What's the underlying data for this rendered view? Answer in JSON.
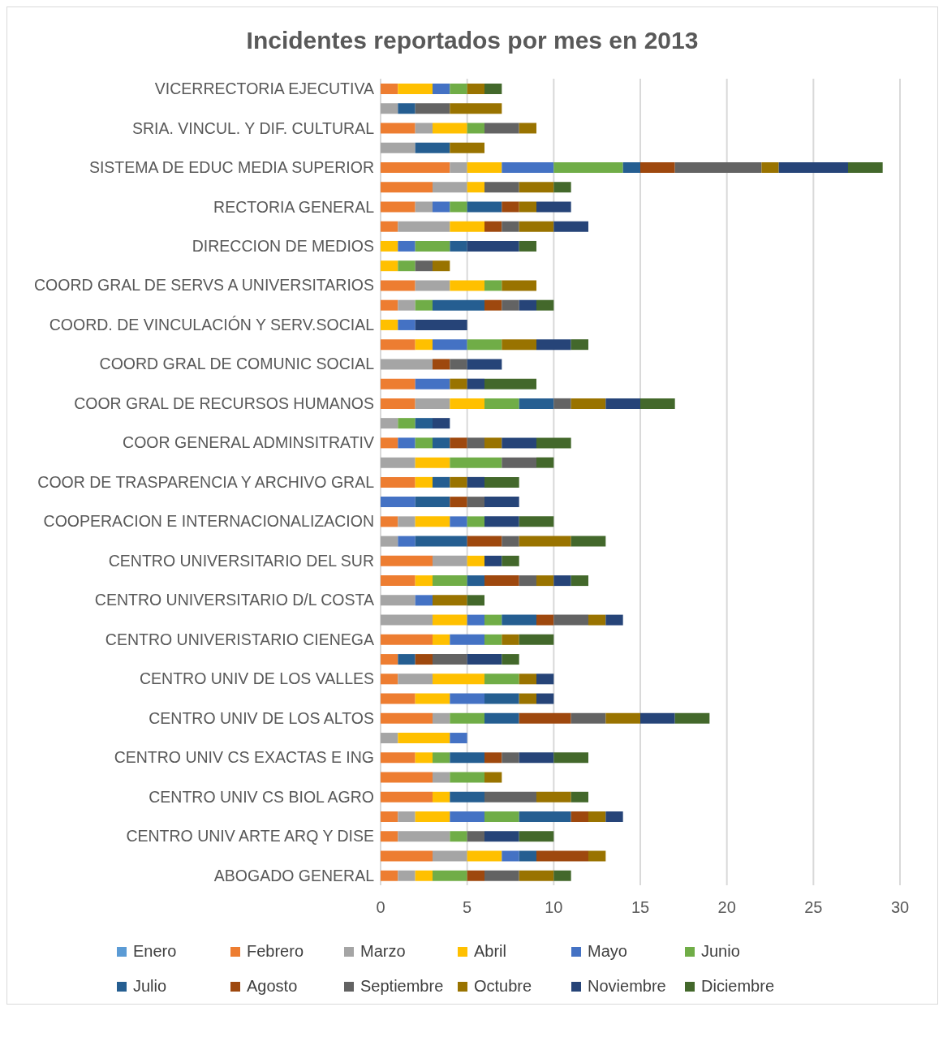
{
  "chart_data": {
    "type": "bar",
    "orientation": "horizontal",
    "stacked": true,
    "title": "Incidentes reportados por mes en 2013",
    "categories": [
      "VICERRECTORIA EJECUTIVA",
      null,
      "SRIA. VINCUL. Y DIF. CULTURAL",
      null,
      "SISTEMA DE EDUC MEDIA SUPERIOR",
      null,
      "RECTORIA GENERAL",
      null,
      "DIRECCION DE MEDIOS",
      null,
      "COORD GRAL DE SERVS A UNIVERSITARIOS",
      null,
      "COORD. DE VINCULACIÓN Y SERV.SOCIAL",
      null,
      "COORD GRAL DE COMUNIC SOCIAL",
      null,
      "COOR GRAL DE RECURSOS HUMANOS",
      null,
      "COOR GENERAL ADMINSITRATIV",
      null,
      "COOR DE TRASPARENCIA Y ARCHIVO GRAL",
      null,
      "COOPERACION E INTERNACIONALIZACION",
      null,
      "CENTRO UNIVERSITARIO DEL SUR",
      null,
      "CENTRO UNIVERSITARIO D/L COSTA",
      null,
      "CENTRO UNIVERISTARIO CIENEGA",
      null,
      "CENTRO UNIV DE LOS VALLES",
      null,
      "CENTRO UNIV DE LOS ALTOS",
      null,
      "CENTRO UNIV CS EXACTAS E ING",
      null,
      "CENTRO UNIV CS BIOL AGRO",
      null,
      "CENTRO UNIV ARTE ARQ Y DISE",
      null,
      "ABOGADO GENERAL"
    ],
    "series": [
      {
        "name": "Enero",
        "color": "#5b9bd5",
        "values": [
          null,
          null,
          null,
          null,
          null,
          null,
          null,
          null,
          null,
          null,
          null,
          null,
          null,
          null,
          null,
          null,
          null,
          null,
          null,
          null,
          null,
          null,
          null,
          null,
          null,
          null,
          null,
          null,
          null,
          null,
          null,
          null,
          null,
          null,
          null,
          null,
          null,
          null,
          null,
          null,
          null
        ]
      },
      {
        "name": "Febrero",
        "color": "#ed7d31",
        "values": [
          1,
          null,
          2,
          null,
          4,
          3,
          2,
          1,
          null,
          null,
          2,
          1,
          null,
          2,
          null,
          2,
          2,
          null,
          1,
          null,
          2,
          null,
          1,
          null,
          3,
          2,
          null,
          null,
          3,
          1,
          1,
          2,
          3,
          null,
          2,
          3,
          3,
          1,
          1,
          3,
          1
        ]
      },
      {
        "name": "Marzo",
        "color": "#a5a5a5",
        "values": [
          null,
          1,
          1,
          2,
          1,
          2,
          1,
          3,
          null,
          null,
          2,
          1,
          null,
          null,
          3,
          null,
          2,
          1,
          null,
          2,
          null,
          null,
          1,
          1,
          2,
          null,
          2,
          3,
          null,
          null,
          2,
          null,
          1,
          1,
          null,
          1,
          null,
          1,
          3,
          2,
          1
        ]
      },
      {
        "name": "Abril",
        "color": "#ffc000",
        "values": [
          2,
          null,
          2,
          null,
          2,
          1,
          null,
          2,
          1,
          1,
          2,
          null,
          1,
          1,
          null,
          null,
          2,
          null,
          null,
          2,
          1,
          null,
          2,
          null,
          1,
          1,
          null,
          2,
          1,
          null,
          3,
          2,
          null,
          3,
          1,
          null,
          1,
          2,
          null,
          2,
          1
        ]
      },
      {
        "name": "Mayo",
        "color": "#4472c4",
        "values": [
          1,
          null,
          null,
          null,
          3,
          null,
          1,
          null,
          1,
          null,
          null,
          null,
          1,
          2,
          null,
          2,
          null,
          null,
          1,
          null,
          null,
          2,
          1,
          1,
          null,
          null,
          1,
          1,
          2,
          null,
          null,
          2,
          null,
          1,
          null,
          null,
          null,
          2,
          null,
          1,
          null
        ]
      },
      {
        "name": "Junio",
        "color": "#70ad47",
        "values": [
          1,
          null,
          1,
          null,
          4,
          null,
          1,
          null,
          2,
          1,
          1,
          1,
          null,
          2,
          null,
          null,
          2,
          1,
          1,
          3,
          null,
          null,
          1,
          null,
          null,
          2,
          null,
          1,
          1,
          null,
          2,
          null,
          2,
          null,
          1,
          2,
          null,
          2,
          1,
          null,
          2
        ]
      },
      {
        "name": "Julio",
        "color": "#255e91",
        "values": [
          null,
          1,
          null,
          2,
          1,
          null,
          2,
          null,
          1,
          null,
          null,
          3,
          null,
          null,
          null,
          null,
          2,
          1,
          1,
          null,
          1,
          2,
          null,
          3,
          null,
          1,
          null,
          2,
          null,
          1,
          null,
          2,
          2,
          null,
          2,
          null,
          2,
          3,
          null,
          1,
          null
        ]
      },
      {
        "name": "Agosto",
        "color": "#9e480e",
        "values": [
          null,
          null,
          null,
          null,
          2,
          null,
          1,
          1,
          null,
          null,
          null,
          1,
          null,
          null,
          1,
          null,
          null,
          null,
          1,
          null,
          null,
          1,
          null,
          2,
          null,
          2,
          null,
          1,
          null,
          1,
          null,
          null,
          3,
          null,
          1,
          null,
          null,
          1,
          null,
          3,
          1
        ]
      },
      {
        "name": "Septiembre",
        "color": "#636363",
        "values": [
          null,
          2,
          2,
          null,
          5,
          2,
          null,
          1,
          null,
          1,
          null,
          1,
          null,
          null,
          1,
          null,
          1,
          null,
          1,
          2,
          null,
          1,
          null,
          1,
          null,
          1,
          null,
          2,
          null,
          2,
          null,
          null,
          2,
          null,
          1,
          null,
          3,
          null,
          1,
          null,
          2
        ]
      },
      {
        "name": "Octubre",
        "color": "#997300",
        "values": [
          1,
          3,
          1,
          2,
          1,
          2,
          1,
          2,
          null,
          1,
          2,
          null,
          null,
          2,
          null,
          1,
          2,
          null,
          1,
          null,
          1,
          null,
          null,
          3,
          null,
          1,
          2,
          1,
          1,
          null,
          1,
          1,
          2,
          null,
          null,
          1,
          2,
          1,
          null,
          1,
          2
        ]
      },
      {
        "name": "Noviembre",
        "color": "#264478",
        "values": [
          null,
          null,
          null,
          null,
          4,
          null,
          2,
          2,
          3,
          null,
          null,
          1,
          3,
          2,
          2,
          1,
          2,
          1,
          2,
          null,
          1,
          2,
          2,
          null,
          1,
          1,
          null,
          1,
          null,
          2,
          1,
          1,
          2,
          null,
          2,
          null,
          null,
          1,
          2,
          null,
          null
        ]
      },
      {
        "name": "Diciembre",
        "color": "#43682b",
        "values": [
          1,
          null,
          null,
          null,
          2,
          1,
          null,
          null,
          1,
          null,
          null,
          1,
          null,
          1,
          null,
          3,
          2,
          null,
          2,
          1,
          2,
          null,
          2,
          2,
          1,
          1,
          1,
          null,
          2,
          1,
          null,
          null,
          2,
          null,
          2,
          null,
          1,
          null,
          2,
          null,
          1
        ]
      }
    ],
    "xlim": [
      0,
      30
    ],
    "xticks": [
      0,
      5,
      10,
      15,
      20,
      25,
      30
    ],
    "grid": "x",
    "legend": "bottom"
  }
}
